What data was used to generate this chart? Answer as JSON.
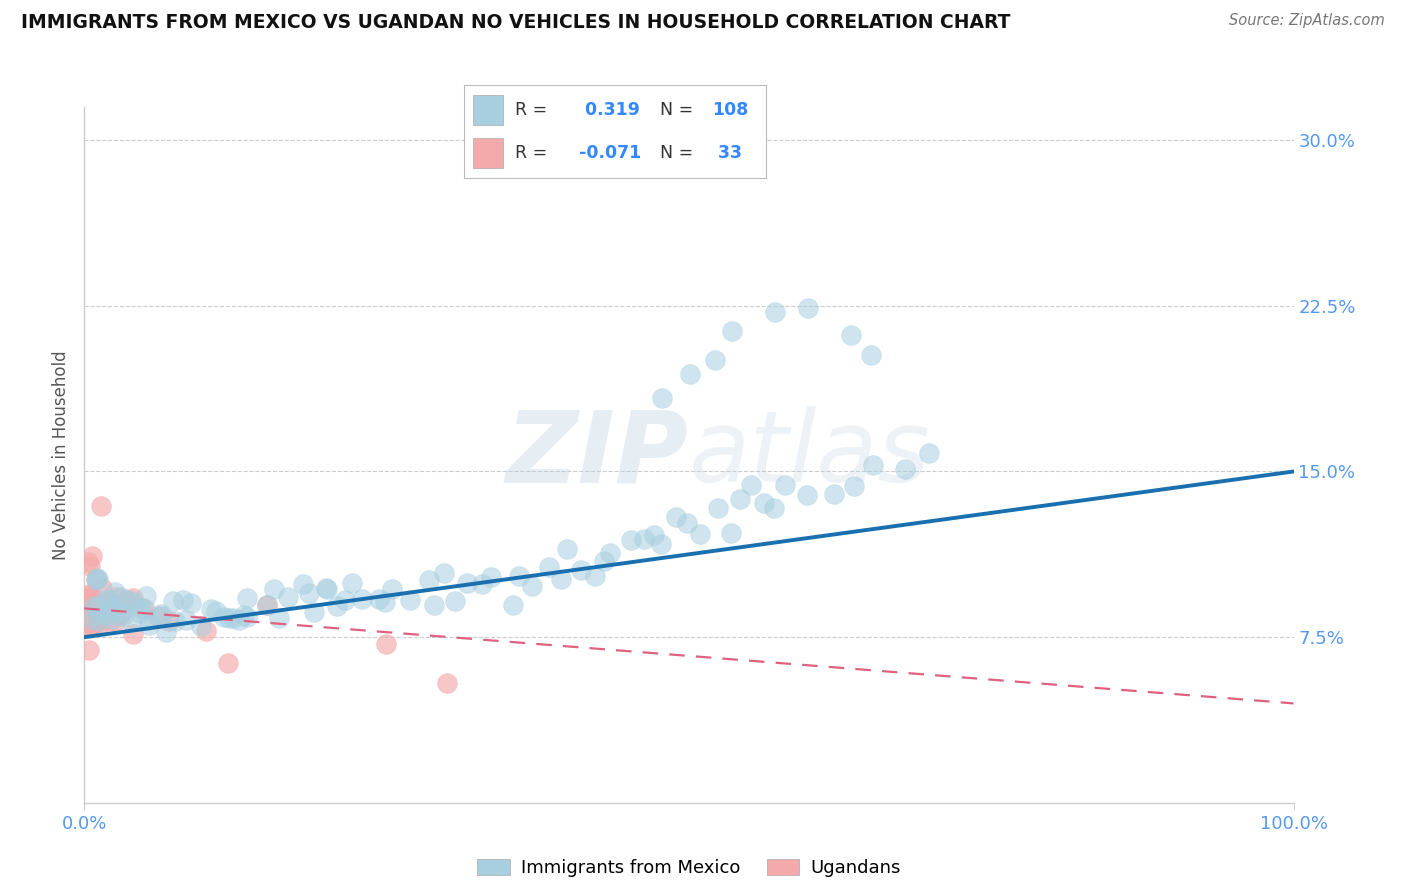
{
  "title": "IMMIGRANTS FROM MEXICO VS UGANDAN NO VEHICLES IN HOUSEHOLD CORRELATION CHART",
  "source": "Source: ZipAtlas.com",
  "ylabel": "No Vehicles in Household",
  "xlim": [
    0.0,
    1.0
  ],
  "ylim": [
    0.0,
    0.315
  ],
  "ytick_vals": [
    0.075,
    0.15,
    0.225,
    0.3
  ],
  "ytick_labels": [
    "7.5%",
    "15.0%",
    "22.5%",
    "30.0%"
  ],
  "xtick_vals": [
    0.0,
    1.0
  ],
  "xtick_labels": [
    "0.0%",
    "100.0%"
  ],
  "r_mexico": " 0.319",
  "n_mexico": "108",
  "r_ugandan": "-0.071",
  "n_ugandan": " 33",
  "blue_scatter": "#a8cfe0",
  "pink_scatter": "#f4aaaa",
  "blue_line": "#1a6faf",
  "pink_line": "#e06080",
  "watermark_color": "#b8cfe0",
  "background_color": "#ffffff",
  "grid_color": "#cccccc",
  "tick_color": "#5599ee",
  "title_color": "#111111",
  "source_color": "#777777",
  "legend_text_color": "#333333",
  "legend_val_color": "#3388ff",
  "mexico_x": [
    0.005,
    0.008,
    0.01,
    0.01,
    0.01,
    0.012,
    0.015,
    0.015,
    0.018,
    0.02,
    0.02,
    0.02,
    0.022,
    0.025,
    0.025,
    0.03,
    0.03,
    0.03,
    0.035,
    0.035,
    0.04,
    0.04,
    0.04,
    0.045,
    0.05,
    0.05,
    0.055,
    0.06,
    0.06,
    0.065,
    0.07,
    0.07,
    0.08,
    0.08,
    0.09,
    0.09,
    0.1,
    0.1,
    0.11,
    0.11,
    0.12,
    0.12,
    0.13,
    0.13,
    0.14,
    0.14,
    0.15,
    0.15,
    0.16,
    0.17,
    0.18,
    0.18,
    0.19,
    0.2,
    0.2,
    0.21,
    0.22,
    0.22,
    0.23,
    0.24,
    0.25,
    0.26,
    0.27,
    0.28,
    0.29,
    0.3,
    0.31,
    0.32,
    0.33,
    0.34,
    0.35,
    0.36,
    0.37,
    0.38,
    0.39,
    0.4,
    0.41,
    0.42,
    0.43,
    0.44,
    0.45,
    0.46,
    0.47,
    0.48,
    0.49,
    0.5,
    0.51,
    0.52,
    0.53,
    0.54,
    0.55,
    0.56,
    0.57,
    0.58,
    0.6,
    0.62,
    0.63,
    0.65,
    0.68,
    0.7,
    0.48,
    0.5,
    0.52,
    0.54,
    0.57,
    0.6,
    0.63,
    0.65
  ],
  "mexico_y": [
    0.095,
    0.085,
    0.09,
    0.1,
    0.085,
    0.08,
    0.09,
    0.1,
    0.085,
    0.09,
    0.095,
    0.085,
    0.085,
    0.09,
    0.085,
    0.095,
    0.085,
    0.09,
    0.09,
    0.085,
    0.085,
    0.09,
    0.085,
    0.095,
    0.09,
    0.085,
    0.085,
    0.09,
    0.085,
    0.09,
    0.085,
    0.09,
    0.085,
    0.09,
    0.085,
    0.095,
    0.085,
    0.09,
    0.085,
    0.09,
    0.085,
    0.09,
    0.085,
    0.09,
    0.085,
    0.09,
    0.085,
    0.09,
    0.09,
    0.09,
    0.09,
    0.095,
    0.09,
    0.095,
    0.09,
    0.095,
    0.09,
    0.095,
    0.095,
    0.09,
    0.095,
    0.1,
    0.095,
    0.1,
    0.09,
    0.1,
    0.095,
    0.1,
    0.095,
    0.1,
    0.095,
    0.1,
    0.1,
    0.105,
    0.1,
    0.11,
    0.105,
    0.11,
    0.115,
    0.11,
    0.12,
    0.115,
    0.12,
    0.12,
    0.125,
    0.13,
    0.13,
    0.125,
    0.13,
    0.135,
    0.14,
    0.135,
    0.14,
    0.14,
    0.145,
    0.145,
    0.145,
    0.15,
    0.15,
    0.155,
    0.185,
    0.195,
    0.205,
    0.215,
    0.22,
    0.225,
    0.21,
    0.205
  ],
  "ugandan_x": [
    0.002,
    0.003,
    0.004,
    0.005,
    0.005,
    0.006,
    0.007,
    0.008,
    0.008,
    0.01,
    0.01,
    0.01,
    0.01,
    0.012,
    0.012,
    0.015,
    0.015,
    0.02,
    0.02,
    0.025,
    0.025,
    0.03,
    0.035,
    0.04,
    0.04,
    0.05,
    0.06,
    0.07,
    0.1,
    0.12,
    0.15,
    0.25,
    0.3
  ],
  "ugandan_y": [
    0.1,
    0.085,
    0.09,
    0.095,
    0.085,
    0.09,
    0.08,
    0.09,
    0.085,
    0.09,
    0.085,
    0.095,
    0.085,
    0.09,
    0.085,
    0.09,
    0.085,
    0.085,
    0.09,
    0.085,
    0.09,
    0.085,
    0.085,
    0.09,
    0.08,
    0.085,
    0.08,
    0.085,
    0.08,
    0.075,
    0.085,
    0.075,
    0.065
  ],
  "mex_line_x0": 0.0,
  "mex_line_y0": 0.075,
  "mex_line_x1": 1.0,
  "mex_line_y1": 0.15,
  "uga_line_x0": 0.0,
  "uga_line_y0": 0.088,
  "uga_line_x1": 1.0,
  "uga_line_y1": 0.045
}
